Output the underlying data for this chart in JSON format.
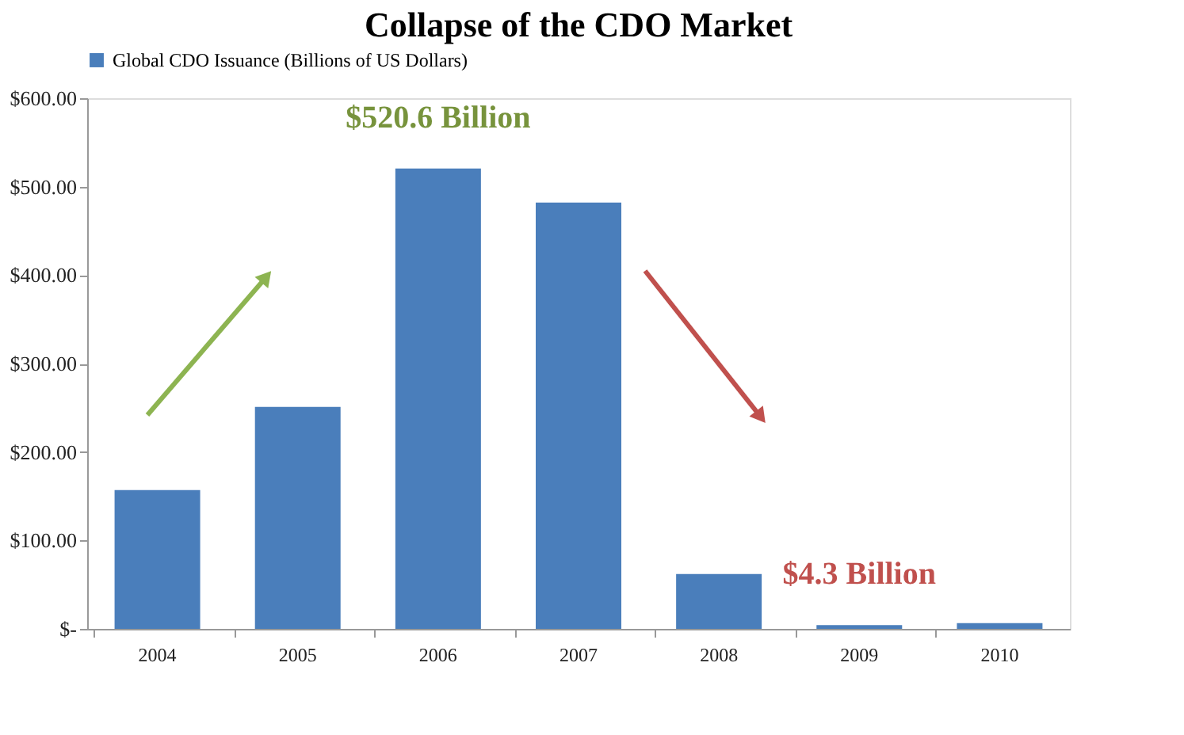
{
  "chart_data": {
    "type": "bar",
    "title": "Collapse of the CDO Market",
    "categories": [
      "2004",
      "2005",
      "2006",
      "2007",
      "2008",
      "2009",
      "2010"
    ],
    "series": [
      {
        "name": "Global CDO Issuance (Billions of US Dollars)",
        "color": "#4a7ebb",
        "values": [
          157,
          251,
          520.6,
          482,
          62,
          4.3,
          6.4
        ]
      }
    ],
    "ylim": [
      0,
      600
    ],
    "yticks": [
      {
        "value": 0,
        "label": "$-"
      },
      {
        "value": 100,
        "label": "$100.00"
      },
      {
        "value": 200,
        "label": "$200.00"
      },
      {
        "value": 300,
        "label": "$300.00"
      },
      {
        "value": 400,
        "label": "$400.00"
      },
      {
        "value": 500,
        "label": "$500.00"
      },
      {
        "value": 600,
        "label": "$600.00"
      }
    ],
    "annotations": [
      {
        "text": "$520.6 Billion",
        "x": "2006",
        "y": 520.6
      },
      {
        "text": "$4.3 Billion",
        "x": "2009",
        "y": 4.3
      }
    ],
    "grid": false,
    "legend": "top"
  }
}
